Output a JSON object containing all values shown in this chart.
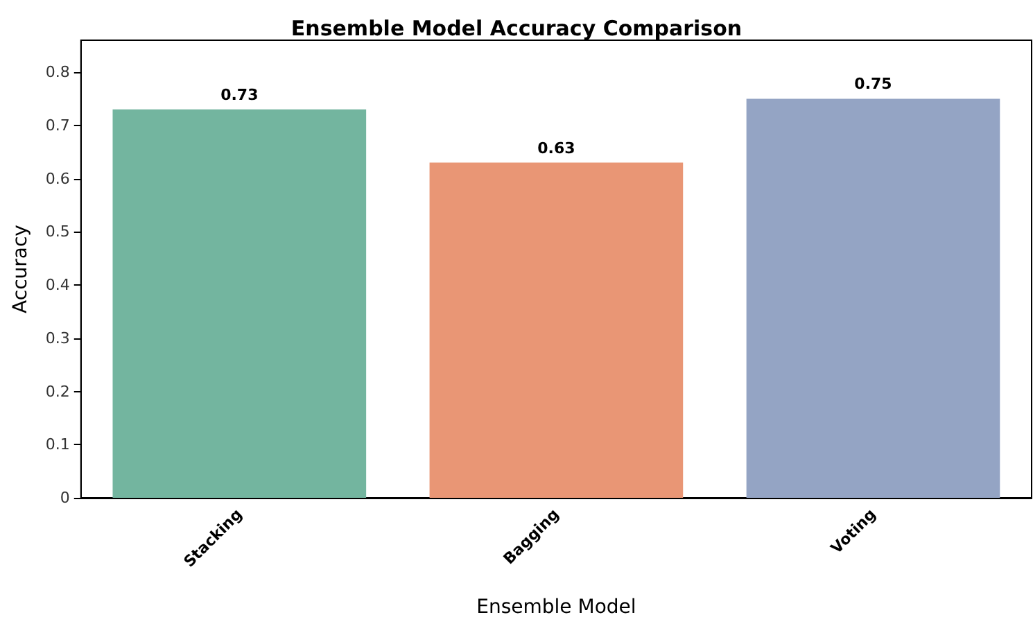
{
  "chart_data": {
    "type": "bar",
    "title": "Ensemble Model Accuracy Comparison",
    "xlabel": "Ensemble Model",
    "ylabel": "Accuracy",
    "categories": [
      "Stacking",
      "Bagging",
      "Voting"
    ],
    "values": [
      0.73,
      0.63,
      0.75
    ],
    "colors": [
      "#73b59f",
      "#e99675",
      "#94a4c4"
    ],
    "ylim": [
      0,
      0.86
    ],
    "yticks": [
      0,
      0.1,
      0.2,
      0.3,
      0.4,
      0.5,
      0.6,
      0.7,
      0.8
    ],
    "data_labels": true,
    "grid": false
  }
}
